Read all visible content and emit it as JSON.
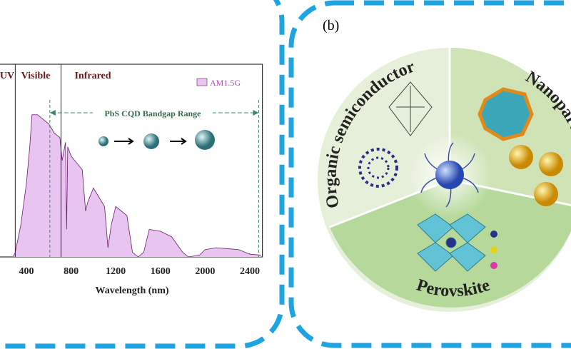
{
  "chart_data": {
    "type": "area",
    "x_label": "Wavelength (nm)",
    "regions": [
      "UV",
      "Visible",
      "Infrared"
    ],
    "region_lines": [
      300,
      710
    ],
    "bandgap_label": "PbS CQD Bandgap Range",
    "bandgap_range": [
      610,
      2480
    ],
    "series": [
      {
        "name": "AM1.5G",
        "color": "#e8c4f0",
        "stroke": "#6a1f6a",
        "x": [
          280,
          300,
          350,
          400,
          430,
          450,
          500,
          550,
          600,
          650,
          700,
          720,
          750,
          760,
          770,
          800,
          900,
          930,
          950,
          1000,
          1100,
          1130,
          1160,
          1200,
          1300,
          1350,
          1400,
          1450,
          1500,
          1600,
          1700,
          1800,
          1850,
          1950,
          2000,
          2100,
          2200,
          2300,
          2400,
          2500
        ],
        "values": [
          0,
          0.05,
          0.35,
          0.8,
          1.2,
          1.55,
          1.55,
          1.5,
          1.45,
          1.35,
          1.3,
          1.05,
          1.25,
          0.3,
          1.2,
          1.1,
          0.95,
          0.5,
          0.6,
          0.75,
          0.55,
          0.1,
          0.35,
          0.55,
          0.45,
          0.05,
          0,
          0.05,
          0.3,
          0.28,
          0.22,
          0.05,
          0,
          0.02,
          0.08,
          0.1,
          0.09,
          0.08,
          0.03,
          0.02
        ]
      }
    ],
    "xlim": [
      200,
      2500
    ],
    "ylim": [
      0,
      2.1
    ],
    "xticks": [
      400,
      800,
      1200,
      1600,
      2000,
      2400
    ]
  },
  "panel_b": {
    "label": "(b)",
    "sectors": [
      "Organic semiconductor",
      "Nanoparticles",
      "Perovskite"
    ]
  }
}
